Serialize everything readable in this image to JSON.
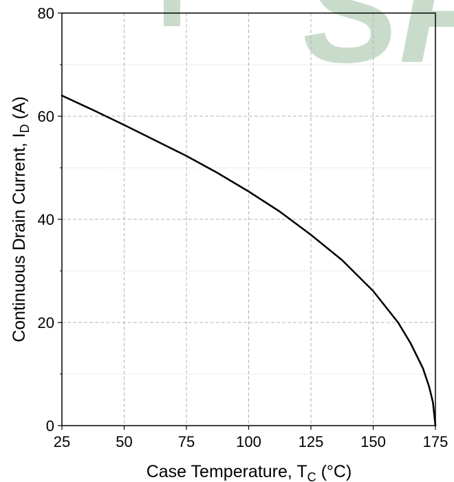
{
  "chart_data": {
    "type": "line",
    "xlabel": {
      "main": "Case Temperature, T",
      "subscript": "C",
      "suffix": " (°C)"
    },
    "ylabel": {
      "main": "Continuous Drain Current, I",
      "subscript": "D",
      "suffix": " (A)"
    },
    "xlim": [
      25,
      175
    ],
    "ylim": [
      0,
      80
    ],
    "x_ticks": [
      25,
      50,
      75,
      100,
      125,
      150,
      175
    ],
    "y_ticks": [
      0,
      20,
      40,
      60,
      80
    ],
    "y_minor_ticks": [
      10,
      30,
      50,
      70
    ],
    "grid": true,
    "series": [
      {
        "color": "#000000",
        "points": [
          [
            25,
            64.0
          ],
          [
            37.5,
            61.2
          ],
          [
            50,
            58.3
          ],
          [
            62.5,
            55.3
          ],
          [
            75,
            52.3
          ],
          [
            87.5,
            49.0
          ],
          [
            100,
            45.4
          ],
          [
            112.5,
            41.5
          ],
          [
            125,
            37.0
          ],
          [
            137.5,
            32.1
          ],
          [
            150,
            26.1
          ],
          [
            160,
            20.0
          ],
          [
            165,
            16.0
          ],
          [
            170,
            11.1
          ],
          [
            172.5,
            7.5
          ],
          [
            174,
            4.5
          ],
          [
            175,
            0
          ]
        ]
      }
    ]
  },
  "watermark": {
    "text": "SP",
    "color": "#c9dccc"
  }
}
